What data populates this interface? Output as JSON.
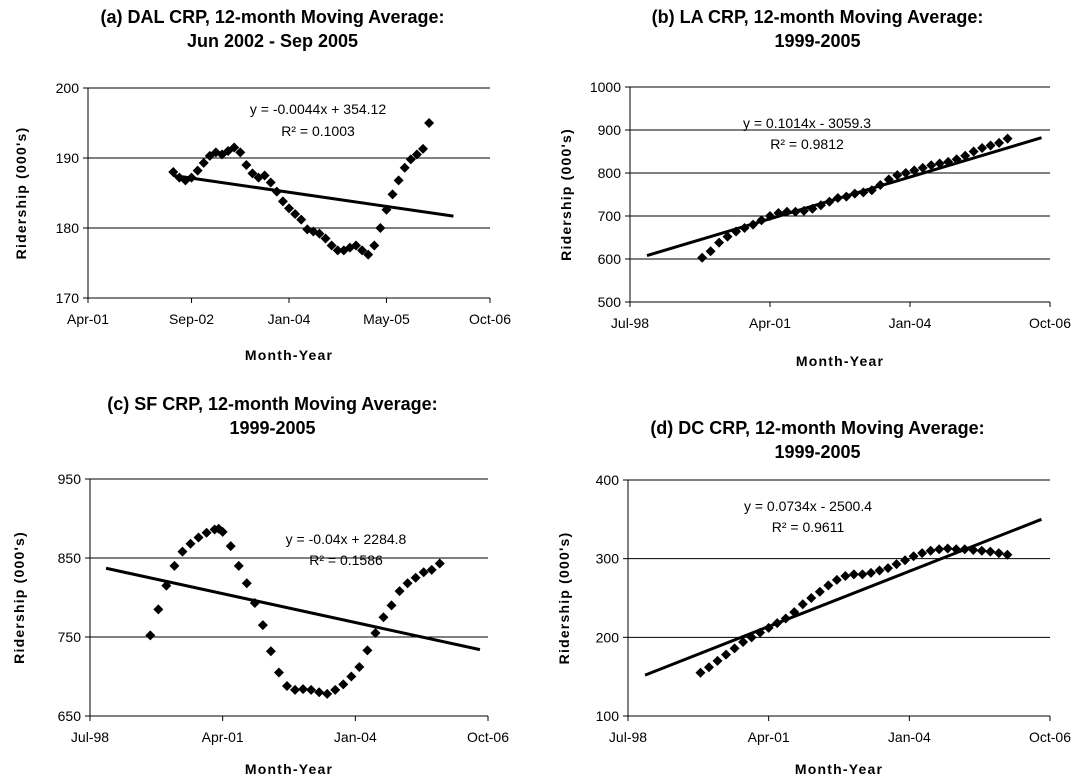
{
  "chart_data": [
    {
      "type": "scatter",
      "title": "(a) DAL CRP, 12-month Moving Average:",
      "subtitle": "Jun 2002 - Sep 2005",
      "xlabel": "Month-Year",
      "ylabel": "Ridership (000's)",
      "xlim": [
        "2001-04",
        "2006-10"
      ],
      "xticks": [
        "Apr-01",
        "Sep-02",
        "Jan-04",
        "May-05",
        "Oct-06"
      ],
      "xtick_dates": [
        "2001-04",
        "2002-09",
        "2004-01",
        "2005-05",
        "2006-10"
      ],
      "ylim": [
        170,
        200
      ],
      "yticks": [
        170,
        180,
        190,
        200
      ],
      "grid": true,
      "trendline": {
        "equation": "y = -0.0044x + 354.12",
        "r2": "R² = 0.1003",
        "start": [
          "2002-06",
          187.5
        ],
        "end": [
          "2006-04",
          181.7
        ]
      },
      "series": [
        {
          "x": [
            "2002-06",
            "2002-07",
            "2002-08",
            "2002-09",
            "2002-10",
            "2002-11",
            "2002-12",
            "2003-01",
            "2003-02",
            "2003-03",
            "2003-04",
            "2003-05",
            "2003-06",
            "2003-07",
            "2003-08",
            "2003-09",
            "2003-10",
            "2003-11",
            "2003-12",
            "2004-01",
            "2004-02",
            "2004-03",
            "2004-04",
            "2004-05",
            "2004-06",
            "2004-07",
            "2004-08",
            "2004-09",
            "2004-10",
            "2004-11",
            "2004-12",
            "2005-01",
            "2005-02",
            "2005-03",
            "2005-04",
            "2005-05",
            "2005-06",
            "2005-07",
            "2005-08",
            "2005-09",
            "2005-10",
            "2005-11",
            "2005-12"
          ],
          "y": [
            188,
            187.2,
            186.8,
            187.2,
            188.2,
            189.3,
            190.3,
            190.8,
            190.5,
            191,
            191.5,
            190.8,
            189,
            187.8,
            187.2,
            187.5,
            186.5,
            185.2,
            183.8,
            182.8,
            182,
            181.2,
            179.8,
            179.5,
            179.2,
            178.5,
            177.5,
            176.8,
            176.8,
            177.2,
            177.5,
            176.8,
            176.2,
            177.5,
            180,
            182.6,
            184.8,
            186.8,
            188.6,
            189.8,
            190.5,
            191.3,
            195
          ]
        }
      ]
    },
    {
      "type": "scatter",
      "title": "(b) LA CRP, 12-month Moving Average:",
      "subtitle": "1999-2005",
      "xlabel": "Month-Year",
      "ylabel": "Ridership (000's)",
      "xlim": [
        "1998-07",
        "2006-10"
      ],
      "xticks": [
        "Jul-98",
        "Apr-01",
        "Jan-04",
        "Oct-06"
      ],
      "xtick_dates": [
        "1998-07",
        "2001-04",
        "2004-01",
        "2006-10"
      ],
      "ylim": [
        500,
        1000
      ],
      "yticks": [
        500,
        600,
        700,
        800,
        900,
        1000
      ],
      "grid": true,
      "trendline": {
        "equation": "y = 0.1014x - 3059.3",
        "r2": "R² = 0.9812",
        "start": [
          "1998-11",
          608
        ],
        "end": [
          "2006-08",
          882
        ]
      },
      "series": [
        {
          "x": [
            "1999-12",
            "2000-02",
            "2000-04",
            "2000-06",
            "2000-08",
            "2000-10",
            "2000-12",
            "2001-02",
            "2001-04",
            "2001-06",
            "2001-08",
            "2001-10",
            "2001-12",
            "2002-02",
            "2002-04",
            "2002-06",
            "2002-08",
            "2002-10",
            "2002-12",
            "2003-02",
            "2003-04",
            "2003-06",
            "2003-08",
            "2003-10",
            "2003-12",
            "2004-02",
            "2004-04",
            "2004-06",
            "2004-08",
            "2004-10",
            "2004-12",
            "2005-02",
            "2005-04",
            "2005-06",
            "2005-08",
            "2005-10",
            "2005-12"
          ],
          "y": [
            603,
            618,
            638,
            652,
            664,
            672,
            680,
            690,
            700,
            707,
            710,
            710,
            712,
            717,
            725,
            733,
            742,
            745,
            752,
            755,
            760,
            772,
            785,
            795,
            800,
            806,
            812,
            818,
            822,
            826,
            832,
            840,
            850,
            858,
            864,
            870,
            880
          ]
        }
      ]
    },
    {
      "type": "scatter",
      "title": "(c) SF CRP, 12-month Moving Average:",
      "subtitle": "1999-2005",
      "xlabel": "Month-Year",
      "ylabel": "Ridership (000's)",
      "xlim": [
        "1998-07",
        "2006-10"
      ],
      "xticks": [
        "Jul-98",
        "Apr-01",
        "Jan-04",
        "Oct-06"
      ],
      "xtick_dates": [
        "1998-07",
        "2001-04",
        "2004-01",
        "2006-10"
      ],
      "ylim": [
        650,
        950
      ],
      "yticks": [
        650,
        750,
        850,
        950
      ],
      "grid": true,
      "trendline": {
        "equation": "y = -0.04x + 2284.8",
        "r2": "R² = 0.1586",
        "start": [
          "1998-11",
          837
        ],
        "end": [
          "2006-08",
          734
        ]
      },
      "series": [
        {
          "x": [
            "1999-10",
            "1999-12",
            "2000-02",
            "2000-04",
            "2000-06",
            "2000-08",
            "2000-10",
            "2000-12",
            "2001-02",
            "2001-03",
            "2001-04",
            "2001-06",
            "2001-08",
            "2001-10",
            "2001-12",
            "2002-02",
            "2002-04",
            "2002-06",
            "2002-08",
            "2002-10",
            "2002-12",
            "2003-02",
            "2003-04",
            "2003-06",
            "2003-08",
            "2003-10",
            "2003-12",
            "2004-02",
            "2004-04",
            "2004-06",
            "2004-08",
            "2004-10",
            "2004-12",
            "2005-02",
            "2005-04",
            "2005-06",
            "2005-08",
            "2005-10"
          ],
          "y": [
            752,
            785,
            815,
            840,
            858,
            868,
            876,
            882,
            886,
            887,
            883,
            865,
            840,
            818,
            793,
            765,
            732,
            705,
            688,
            683,
            684,
            683,
            680,
            678,
            683,
            690,
            700,
            712,
            733,
            755,
            775,
            790,
            808,
            818,
            825,
            832,
            835,
            843
          ]
        }
      ]
    },
    {
      "type": "scatter",
      "title": "(d) DC CRP, 12-month Moving Average:",
      "subtitle": "1999-2005",
      "xlabel": "Month-Year",
      "ylabel": "Ridership (000's)",
      "xlim": [
        "1998-07",
        "2006-10"
      ],
      "xticks": [
        "Jul-98",
        "Apr-01",
        "Jan-04",
        "Oct-06"
      ],
      "xtick_dates": [
        "1998-07",
        "2001-04",
        "2004-01",
        "2006-10"
      ],
      "ylim": [
        100,
        400
      ],
      "yticks": [
        100,
        200,
        300,
        400
      ],
      "grid": true,
      "trendline": {
        "equation": "y = 0.0734x - 2500.4",
        "r2": "R² = 0.9611",
        "start": [
          "1998-11",
          152
        ],
        "end": [
          "2006-08",
          350
        ]
      },
      "series": [
        {
          "x": [
            "1999-12",
            "2000-02",
            "2000-04",
            "2000-06",
            "2000-08",
            "2000-10",
            "2000-12",
            "2001-02",
            "2001-04",
            "2001-06",
            "2001-08",
            "2001-10",
            "2001-12",
            "2002-02",
            "2002-04",
            "2002-06",
            "2002-08",
            "2002-10",
            "2002-12",
            "2003-02",
            "2003-04",
            "2003-06",
            "2003-08",
            "2003-10",
            "2003-12",
            "2004-02",
            "2004-04",
            "2004-06",
            "2004-08",
            "2004-10",
            "2004-12",
            "2005-02",
            "2005-04",
            "2005-06",
            "2005-08",
            "2005-10",
            "2005-12"
          ],
          "y": [
            155,
            162,
            170,
            178,
            186,
            194,
            200,
            206,
            212,
            218,
            224,
            232,
            242,
            250,
            258,
            266,
            273,
            278,
            280,
            280,
            282,
            285,
            288,
            293,
            298,
            303,
            307,
            310,
            312,
            313,
            312,
            312,
            311,
            310,
            309,
            307,
            305
          ]
        }
      ]
    }
  ]
}
